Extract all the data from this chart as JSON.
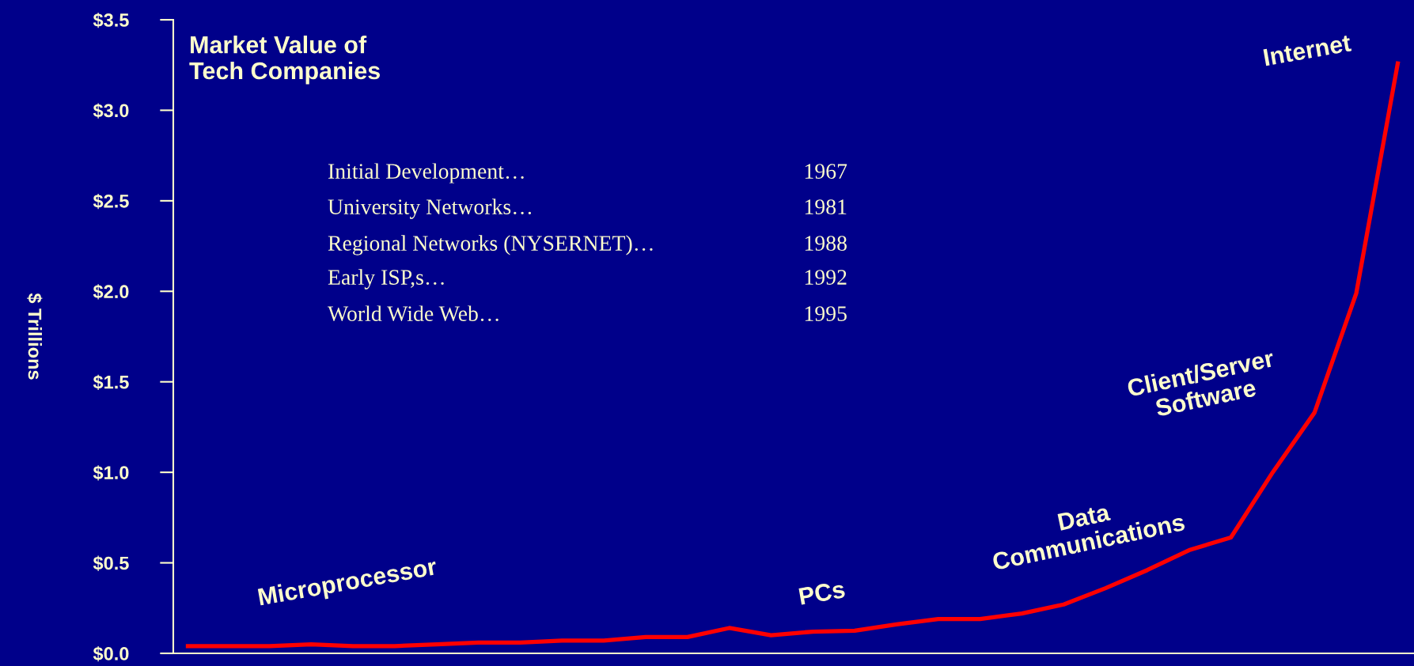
{
  "chart_data": {
    "type": "line",
    "title": "Market Value of\nTech Companies",
    "ylabel": "$ Trillions",
    "categories": [
      null,
      null,
      null,
      null,
      null,
      null,
      null,
      null,
      null,
      null,
      null,
      null,
      null,
      null,
      null,
      null,
      null,
      null,
      null,
      null,
      null,
      null,
      null,
      null,
      null,
      null,
      null,
      null,
      null,
      null
    ],
    "series": [
      {
        "color": "#ff0000",
        "values": [
          0.04,
          0.04,
          0.04,
          0.05,
          0.04,
          0.04,
          0.05,
          0.06,
          0.06,
          0.07,
          0.07,
          0.09,
          0.09,
          0.14,
          0.1,
          0.12,
          0.125,
          0.16,
          0.19,
          0.19,
          0.22,
          0.27,
          0.36,
          0.46,
          0.57,
          0.64,
          1.0,
          1.33,
          1.99,
          3.27
        ]
      }
    ],
    "ylim": [
      0,
      3.5
    ],
    "yticks": [
      {
        "value": 0,
        "label": "$0.0"
      },
      {
        "value": 0.5,
        "label": "$0.5"
      },
      {
        "value": 1,
        "label": "$1.0"
      },
      {
        "value": 1.5,
        "label": "$1.5"
      },
      {
        "value": 2,
        "label": "$2.0"
      },
      {
        "value": 2.5,
        "label": "$2.5"
      },
      {
        "value": 3,
        "label": "$3.0"
      },
      {
        "value": 3.5,
        "label": "$3.5"
      }
    ],
    "grid": false,
    "legend": false,
    "marker": "none",
    "line_style": "solid",
    "annotations": [
      "Microprocessor",
      "PCs",
      "Data\nCommunications",
      "Client/Server\nSoftware",
      "Internet",
      "Initial Development…",
      "1967",
      "University Networks…",
      "1981",
      "Regional Networks (NYSERNET)…",
      "1988",
      "Early ISP,s…",
      "1992",
      "World Wide Web…",
      "1995"
    ]
  }
}
